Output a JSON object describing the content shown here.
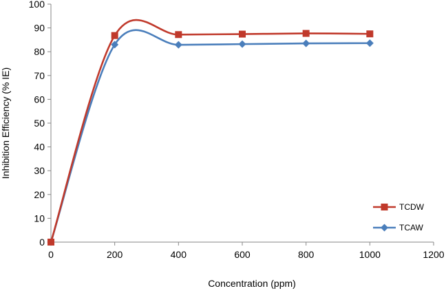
{
  "chart_data": {
    "type": "line",
    "title": "",
    "xlabel": "Concentration (ppm)",
    "ylabel": "Inhibition Efficiency (% IE)",
    "xlim": [
      0,
      1200
    ],
    "ylim": [
      0,
      100
    ],
    "xticks": [
      0,
      200,
      400,
      600,
      800,
      1000,
      1200
    ],
    "yticks": [
      0,
      10,
      20,
      30,
      40,
      50,
      60,
      70,
      80,
      90,
      100
    ],
    "grid": false,
    "smoothed": true,
    "legend_position": "right",
    "series": [
      {
        "name": "TCDW",
        "color": "#C0392B",
        "marker": "square",
        "x": [
          0,
          200,
          400,
          600,
          800,
          1000
        ],
        "y": [
          0,
          86.8,
          87.2,
          87.4,
          87.7,
          87.5
        ]
      },
      {
        "name": "TCAW",
        "color": "#4A7EBB",
        "marker": "diamond",
        "x": [
          0,
          200,
          400,
          600,
          800,
          1000
        ],
        "y": [
          0,
          83.0,
          82.9,
          83.2,
          83.5,
          83.6
        ]
      }
    ]
  }
}
